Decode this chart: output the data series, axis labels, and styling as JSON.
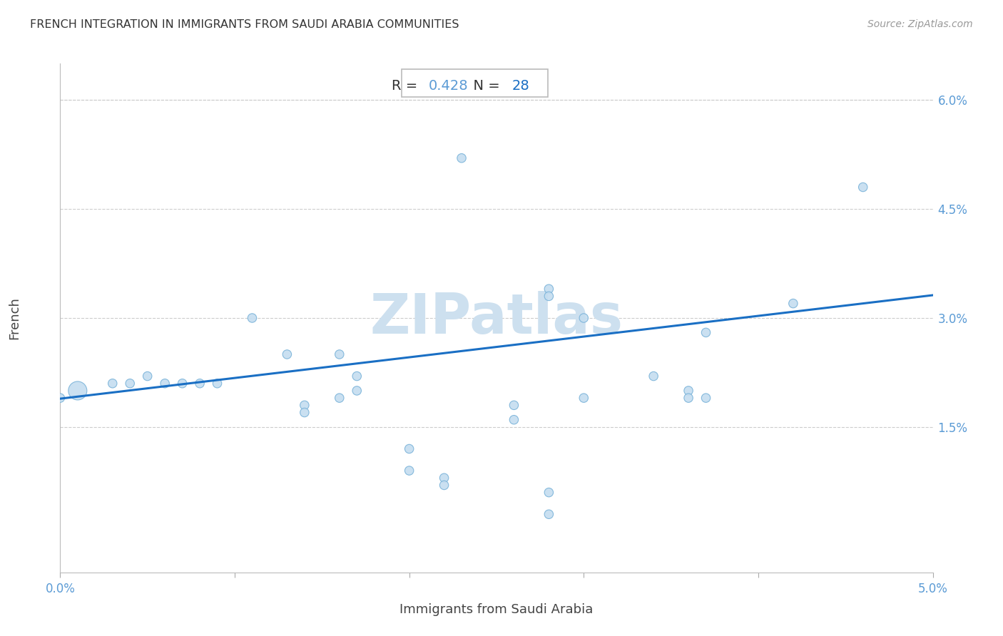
{
  "title": "FRENCH INTEGRATION IN IMMIGRANTS FROM SAUDI ARABIA COMMUNITIES",
  "source": "Source: ZipAtlas.com",
  "xlabel": "Immigrants from Saudi Arabia",
  "ylabel": "French",
  "R": 0.428,
  "N": 28,
  "xlim": [
    0.0,
    0.05
  ],
  "ylim": [
    -0.005,
    0.065
  ],
  "scatter_color": "#c5ddf0",
  "scatter_edge_color": "#7ab3d9",
  "line_color": "#1a6fc4",
  "title_color": "#333333",
  "axis_label_color": "#444444",
  "tick_color": "#5b9bd5",
  "grid_color": "#cccccc",
  "watermark_color": "#cde0ef",
  "annotation_box_edge": "#bbbbbb",
  "R_label_color": "#333333",
  "R_value_color": "#5b9bd5",
  "N_label_color": "#333333",
  "N_value_color": "#1a6fc4",
  "points_x": [
    0.001,
    0.003,
    0.004,
    0.005,
    0.006,
    0.007,
    0.008,
    0.009,
    0.011,
    0.013,
    0.014,
    0.016,
    0.017,
    0.017,
    0.02,
    0.022,
    0.023,
    0.026,
    0.028,
    0.028,
    0.03,
    0.034,
    0.036,
    0.037,
    0.037,
    0.042,
    0.046,
    0.0
  ],
  "points_y": [
    0.02,
    0.021,
    0.021,
    0.022,
    0.021,
    0.021,
    0.021,
    0.021,
    0.03,
    0.025,
    0.018,
    0.025,
    0.022,
    0.02,
    0.012,
    0.008,
    0.052,
    0.018,
    0.034,
    0.033,
    0.03,
    0.022,
    0.02,
    0.019,
    0.028,
    0.032,
    0.048,
    0.019
  ],
  "point_sizes": [
    350,
    80,
    80,
    80,
    80,
    80,
    80,
    80,
    80,
    80,
    80,
    80,
    80,
    80,
    80,
    80,
    80,
    80,
    80,
    80,
    80,
    80,
    80,
    80,
    80,
    80,
    80,
    80
  ],
  "extra_points_x": [
    0.014,
    0.016,
    0.026,
    0.028,
    0.03,
    0.036
  ],
  "extra_points_y": [
    0.017,
    0.019,
    0.016,
    0.006,
    0.019,
    0.019
  ],
  "yticks": [
    0.015,
    0.03,
    0.045,
    0.06
  ],
  "ytick_labels": [
    "1.5%",
    "3.0%",
    "4.5%",
    "6.0%"
  ],
  "xticks": [
    0.0,
    0.01,
    0.02,
    0.03,
    0.04,
    0.05
  ],
  "xtick_labels": [
    "0.0%",
    "",
    "",
    "",
    "",
    "5.0%"
  ],
  "bottom_points_x": [
    0.02,
    0.022,
    0.028
  ],
  "bottom_points_y": [
    0.009,
    0.007,
    0.003
  ]
}
